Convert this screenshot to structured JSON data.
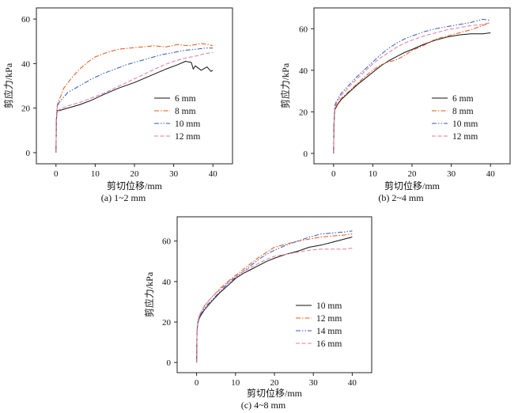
{
  "chart_data": [
    {
      "type": "line",
      "caption": "(a) 1~2 mm",
      "xlabel": "剪切位移/mm",
      "ylabel": "剪应力/kPa",
      "xlim": [
        -5,
        45
      ],
      "ylim": [
        -5,
        65
      ],
      "xticks": [
        "0",
        "10",
        "20",
        "30",
        "40"
      ],
      "yticks": [
        "0",
        "20",
        "40",
        "60"
      ],
      "legend_position": "lower-right",
      "series": [
        {
          "name": "6 mm",
          "color": "#111111",
          "dash": "solid",
          "x": [
            0,
            0.1,
            0.3,
            0.6,
            1,
            3,
            6,
            9,
            12,
            16,
            20,
            24,
            28,
            31,
            33,
            34.5,
            35,
            35.5,
            37,
            38.5,
            39.5,
            40
          ],
          "y": [
            0,
            15,
            19,
            18.8,
            19,
            20,
            21.5,
            23.5,
            26,
            29,
            31.5,
            34.5,
            37.5,
            39.5,
            41,
            40.5,
            37.5,
            39,
            37,
            38.5,
            36.5,
            37
          ]
        },
        {
          "name": "8 mm",
          "color": "#e8541a",
          "dash": "dashdot",
          "x": [
            0,
            0.1,
            0.3,
            0.6,
            1,
            2,
            4,
            6,
            8,
            10,
            13,
            16,
            19,
            22,
            25,
            28,
            31,
            34,
            37,
            39,
            40
          ],
          "y": [
            0,
            15,
            21,
            23,
            24.5,
            29,
            33.5,
            37.5,
            40.5,
            43,
            45,
            46.5,
            47,
            47.5,
            48,
            47.5,
            48.5,
            48,
            49,
            48.5,
            48
          ]
        },
        {
          "name": "10 mm",
          "color": "#3355bb",
          "dash": "dashdotdot",
          "x": [
            0,
            0.1,
            0.3,
            0.6,
            1,
            3,
            6,
            9,
            12,
            15,
            18,
            21,
            24,
            27,
            30,
            33,
            36,
            38,
            40
          ],
          "y": [
            0,
            15,
            20,
            22,
            23,
            27,
            30,
            33,
            35.5,
            37.5,
            39.5,
            41,
            42.5,
            44,
            45,
            46,
            46.5,
            47,
            47
          ]
        },
        {
          "name": "12 mm",
          "color": "#e07aa0",
          "dash": "dashed",
          "x": [
            0,
            0.1,
            0.3,
            0.6,
            1,
            3,
            6,
            9,
            12,
            15,
            18,
            21,
            24,
            27,
            30,
            33,
            36,
            38,
            40
          ],
          "y": [
            0,
            15,
            18.5,
            19,
            19.5,
            21,
            22.5,
            24.5,
            26.5,
            29,
            31.5,
            34,
            36.5,
            39,
            41,
            42.5,
            43.5,
            44.5,
            45
          ]
        }
      ]
    },
    {
      "type": "line",
      "caption": "(b) 2~4 mm",
      "xlabel": "剪切位移/mm",
      "ylabel": "剪应力/kPa",
      "xlim": [
        -5,
        45
      ],
      "ylim": [
        -5,
        70
      ],
      "xticks": [
        "0",
        "10",
        "20",
        "30",
        "40"
      ],
      "yticks": [
        "0",
        "20",
        "40",
        "60"
      ],
      "legend_position": "lower-right",
      "series": [
        {
          "name": "6 mm",
          "color": "#111111",
          "dash": "solid",
          "x": [
            0,
            0.1,
            0.3,
            0.6,
            1,
            2,
            4,
            6,
            8,
            10,
            12,
            14,
            16,
            18,
            20,
            23,
            26,
            29,
            32,
            35,
            38,
            40
          ],
          "y": [
            0,
            14,
            21,
            22,
            23.5,
            26,
            29.5,
            33,
            36,
            39,
            42,
            44.5,
            46.5,
            48.5,
            50,
            52.5,
            54.5,
            56,
            57,
            57.5,
            57.5,
            58
          ]
        },
        {
          "name": "8 mm",
          "color": "#e8541a",
          "dash": "dashdot",
          "x": [
            0,
            0.1,
            0.3,
            0.6,
            1,
            2,
            4,
            6,
            8,
            10,
            12,
            14,
            16,
            18,
            20,
            23,
            26,
            29,
            32,
            35,
            38,
            40
          ],
          "y": [
            0,
            14,
            21,
            22.5,
            24,
            26.5,
            30,
            33.5,
            37,
            40,
            42.5,
            44,
            45,
            47,
            49.5,
            52,
            55,
            56.5,
            58,
            59.5,
            61.5,
            63
          ]
        },
        {
          "name": "10 mm",
          "color": "#3355bb",
          "dash": "dashdotdot",
          "x": [
            0,
            0.1,
            0.3,
            0.6,
            1,
            2,
            4,
            6,
            8,
            10,
            12,
            14,
            16,
            18,
            20,
            23,
            26,
            29,
            32,
            35,
            38,
            40
          ],
          "y": [
            0,
            15,
            23,
            24.5,
            26,
            29,
            33,
            37,
            40.5,
            44,
            47.5,
            50.5,
            53,
            55,
            56.5,
            58.5,
            60,
            61,
            62,
            63,
            64.5,
            64
          ]
        },
        {
          "name": "12 mm",
          "color": "#e07aa0",
          "dash": "dashed",
          "x": [
            0,
            0.1,
            0.3,
            0.6,
            1,
            2,
            4,
            6,
            8,
            10,
            12,
            14,
            16,
            18,
            20,
            23,
            26,
            29,
            32,
            35,
            38,
            40
          ],
          "y": [
            0,
            14,
            22,
            23.5,
            25,
            28,
            32,
            36,
            39.5,
            43,
            46,
            48.5,
            51,
            53,
            54.5,
            56.5,
            58,
            59.5,
            60.5,
            61.5,
            62,
            63
          ]
        }
      ]
    },
    {
      "type": "line",
      "caption": "(c) 4~8 mm",
      "xlabel": "剪切位移/mm",
      "ylabel": "剪应力/kPa",
      "xlim": [
        -5,
        45
      ],
      "ylim": [
        -5,
        72
      ],
      "xticks": [
        "0",
        "10",
        "20",
        "30",
        "40"
      ],
      "yticks": [
        "0",
        "20",
        "40",
        "60"
      ],
      "legend_position": "lower-right",
      "series": [
        {
          "name": "10 mm",
          "color": "#111111",
          "dash": "solid",
          "x": [
            0,
            0.1,
            0.3,
            0.6,
            1,
            2,
            4,
            6,
            8,
            10,
            12,
            14,
            16,
            18,
            20,
            23,
            26,
            29,
            32,
            35,
            38,
            40
          ],
          "y": [
            0,
            15,
            19.5,
            21.5,
            23,
            26,
            30.5,
            34.5,
            38,
            41.5,
            44,
            46,
            48,
            50,
            51.5,
            53.5,
            55,
            57,
            58,
            59.5,
            61,
            62
          ]
        },
        {
          "name": "12 mm",
          "color": "#e8541a",
          "dash": "dashdot",
          "x": [
            0,
            0.1,
            0.3,
            0.6,
            1,
            2,
            4,
            6,
            8,
            10,
            12,
            14,
            16,
            18,
            20,
            23,
            26,
            29,
            32,
            35,
            38,
            40
          ],
          "y": [
            0,
            15,
            20,
            22.5,
            24.5,
            28,
            32.5,
            36.5,
            40,
            43,
            46,
            49,
            52,
            54.5,
            57,
            58.5,
            60,
            61,
            62,
            62.5,
            63,
            63.5
          ]
        },
        {
          "name": "14 mm",
          "color": "#3355bb",
          "dash": "dashdotdot",
          "x": [
            0,
            0.1,
            0.3,
            0.6,
            1,
            2,
            4,
            6,
            8,
            10,
            12,
            14,
            16,
            18,
            20,
            23,
            26,
            29,
            32,
            35,
            38,
            40
          ],
          "y": [
            0,
            15,
            19.5,
            21.5,
            23.5,
            27,
            31,
            35,
            39,
            42,
            45,
            48,
            51,
            53.5,
            55.5,
            58,
            60,
            62,
            63.5,
            64,
            64.5,
            65
          ]
        },
        {
          "name": "16 mm",
          "color": "#e07aa0",
          "dash": "dashed",
          "x": [
            0,
            0.1,
            0.3,
            0.6,
            1,
            2,
            4,
            6,
            8,
            10,
            12,
            14,
            16,
            18,
            20,
            23,
            26,
            29,
            32,
            35,
            38,
            40
          ],
          "y": [
            0,
            15,
            20,
            22.5,
            24.5,
            28,
            32.5,
            36,
            39.5,
            42.5,
            45,
            47,
            49,
            51,
            52.5,
            53.5,
            54.5,
            55.5,
            56,
            56,
            56,
            56.5
          ]
        }
      ]
    }
  ]
}
